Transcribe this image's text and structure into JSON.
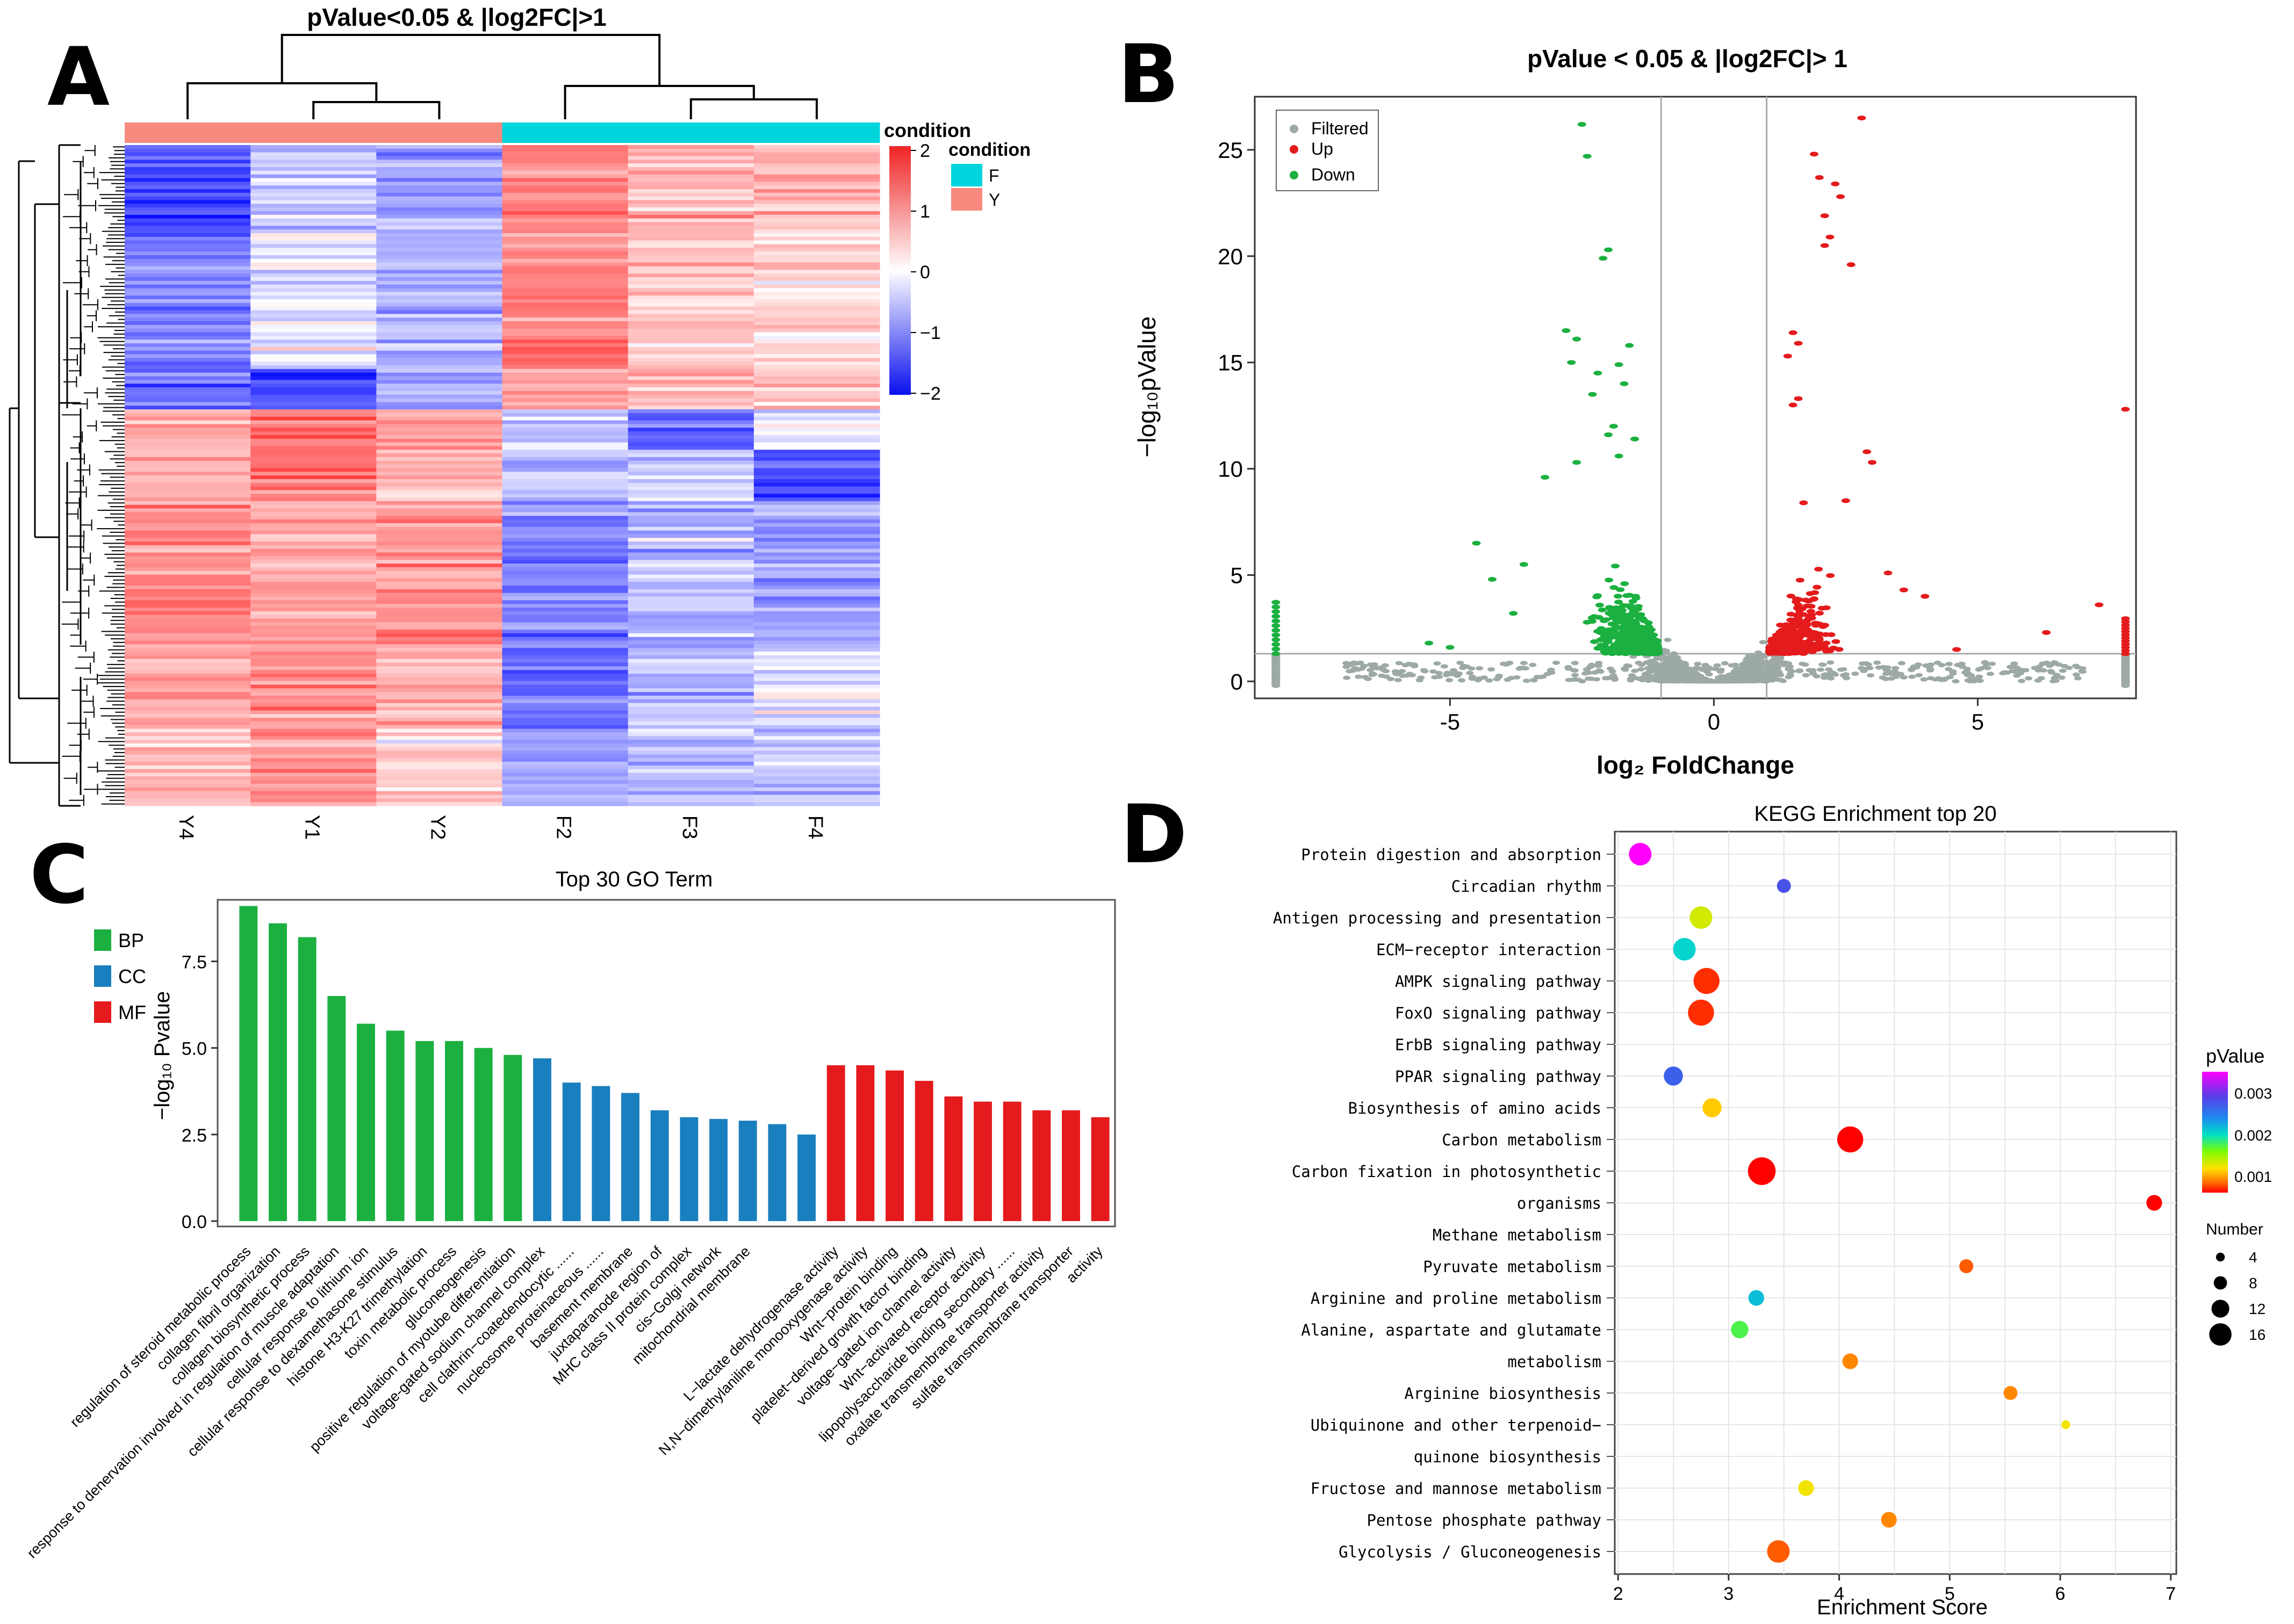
{
  "panels": {
    "a": "A",
    "b": "B",
    "c": "C",
    "d": "D"
  },
  "colors": {
    "red": "#E41A1C",
    "green": "#1BB040",
    "blue": "#1A7FBE",
    "grey": "#9DA9A6",
    "cyan": "#00D4DD",
    "salmon": "#F7897E"
  },
  "chart_data": [
    {
      "type": "heatmap",
      "panel": "A",
      "title": "pValue<0.05 & |log2FC|>1",
      "columns": [
        "Y4",
        "Y1",
        "Y2",
        "F2",
        "F3",
        "F4"
      ],
      "column_conditions": [
        "Y",
        "Y",
        "Y",
        "F",
        "F",
        "F"
      ],
      "legend_title": "condition",
      "condition_legend": {
        "title": "condition",
        "items": [
          {
            "label": "F",
            "color": "#00D4DD"
          },
          {
            "label": "Y",
            "color": "#F7897E"
          }
        ]
      },
      "scale": {
        "ticks": [
          "2",
          "1",
          "0",
          "−1",
          "−2"
        ],
        "min": -2,
        "max": 2
      },
      "cluster_blocks": [
        {
          "share": 0.14,
          "values": [
            -1.5,
            -0.4,
            -0.8,
            1.1,
            0.7,
            0.6
          ]
        },
        {
          "share": 0.2,
          "values": [
            -1.0,
            -0.2,
            -0.6,
            1.2,
            0.5,
            0.4
          ]
        },
        {
          "share": 0.06,
          "values": [
            -1.2,
            -1.4,
            -0.7,
            0.9,
            0.6,
            0.5
          ]
        },
        {
          "share": 0.06,
          "values": [
            0.8,
            1.2,
            0.9,
            -0.4,
            -1.2,
            -0.2
          ]
        },
        {
          "share": 0.08,
          "values": [
            0.7,
            1.1,
            0.6,
            -0.5,
            -0.3,
            -1.3
          ]
        },
        {
          "share": 0.22,
          "values": [
            1.0,
            0.8,
            0.9,
            -1.0,
            -0.6,
            -0.8
          ]
        },
        {
          "share": 0.12,
          "values": [
            0.8,
            1.0,
            0.6,
            -1.3,
            -0.5,
            -0.2
          ]
        },
        {
          "share": 0.12,
          "values": [
            0.6,
            0.9,
            0.3,
            -0.8,
            -0.6,
            -0.5
          ]
        }
      ]
    },
    {
      "type": "scatter",
      "panel": "B",
      "title": "pValue < 0.05 & |log2FC|> 1",
      "xlabel": "log₂ FoldChange",
      "ylabel": "−log₁₀pValue",
      "xlim": [
        -8.7,
        8
      ],
      "ylim": [
        -0.8,
        27.5
      ],
      "xticks": [
        -5,
        0,
        5
      ],
      "yticks": [
        0,
        5,
        10,
        15,
        20,
        25
      ],
      "thresholds": {
        "fc": [
          -1,
          1
        ],
        "p": 1.3
      },
      "legend": [
        {
          "label": "Filtered",
          "color": "#9DA9A6"
        },
        {
          "label": "Up",
          "color": "#E41A1C"
        },
        {
          "label": "Down",
          "color": "#1BB040"
        }
      ],
      "highlights": {
        "down": [
          [
            -2.5,
            26.2
          ],
          [
            -2.4,
            24.7
          ],
          [
            -2.0,
            20.3
          ],
          [
            -2.1,
            19.9
          ],
          [
            -2.8,
            16.5
          ],
          [
            -2.6,
            16.1
          ],
          [
            -1.6,
            15.8
          ],
          [
            -2.7,
            15.0
          ],
          [
            -1.8,
            14.9
          ],
          [
            -2.2,
            14.5
          ],
          [
            -1.7,
            14.0
          ],
          [
            -2.3,
            13.5
          ],
          [
            -1.9,
            12.0
          ],
          [
            -2.0,
            11.6
          ],
          [
            -1.5,
            11.4
          ],
          [
            -1.8,
            10.6
          ],
          [
            -2.6,
            10.3
          ],
          [
            -3.2,
            9.6
          ],
          [
            -4.5,
            6.5
          ],
          [
            -4.2,
            4.8
          ],
          [
            -3.6,
            5.5
          ],
          [
            -5.4,
            1.8
          ],
          [
            -5.0,
            1.6
          ],
          [
            -3.8,
            3.2
          ]
        ],
        "up": [
          [
            2.8,
            26.5
          ],
          [
            1.9,
            24.8
          ],
          [
            2.0,
            23.7
          ],
          [
            2.3,
            23.4
          ],
          [
            2.4,
            22.8
          ],
          [
            2.1,
            21.9
          ],
          [
            2.2,
            20.9
          ],
          [
            2.1,
            20.5
          ],
          [
            2.6,
            19.6
          ],
          [
            1.5,
            16.4
          ],
          [
            1.6,
            15.9
          ],
          [
            1.4,
            15.3
          ],
          [
            1.6,
            13.3
          ],
          [
            1.5,
            13.0
          ],
          [
            7.8,
            12.8
          ],
          [
            2.9,
            10.8
          ],
          [
            3.0,
            10.3
          ],
          [
            1.7,
            8.4
          ],
          [
            2.5,
            8.5
          ],
          [
            3.3,
            5.1
          ],
          [
            4.0,
            4.0
          ],
          [
            3.6,
            4.3
          ],
          [
            7.3,
            3.6
          ],
          [
            6.3,
            2.3
          ],
          [
            4.6,
            1.5
          ]
        ],
        "edge_down_x": -8.3,
        "edge_up_x": 7.8
      }
    },
    {
      "type": "bar",
      "panel": "C",
      "title": "Top 30 GO Term",
      "ylabel": "−log₁₀ Pvalue",
      "ylim": [
        0,
        9.2
      ],
      "yticks": [
        "0.0",
        "2.5",
        "5.0",
        "7.5"
      ],
      "legend": [
        {
          "label": "BP",
          "color": "#1BB040"
        },
        {
          "label": "CC",
          "color": "#1A7FBE"
        },
        {
          "label": "MF",
          "color": "#E41A1C"
        }
      ],
      "bars": [
        {
          "label": "regulation of steroid metabolic process",
          "value": 9.1,
          "group": "BP"
        },
        {
          "label": "collagen fibril organization",
          "value": 8.6,
          "group": "BP"
        },
        {
          "label": "collagen biosynthetic process",
          "value": 8.2,
          "group": "BP"
        },
        {
          "label": "response to denervation involved in regulation of muscle adaptation",
          "value": 6.5,
          "group": "BP"
        },
        {
          "label": "cellular response to lithium ion",
          "value": 5.7,
          "group": "BP"
        },
        {
          "label": "cellular response to dexamethasone stimulus",
          "value": 5.5,
          "group": "BP"
        },
        {
          "label": "histone H3-K27 trimethylation",
          "value": 5.2,
          "group": "BP"
        },
        {
          "label": "toxin metabolic process",
          "value": 5.2,
          "group": "BP"
        },
        {
          "label": "gluconeogenesis",
          "value": 5.0,
          "group": "BP"
        },
        {
          "label": "positive regulation of myotube differentiation",
          "value": 4.8,
          "group": "BP"
        },
        {
          "label": "voltage-gated sodium channel complex",
          "value": 4.7,
          "group": "CC"
        },
        {
          "label": "cell clathrin−coatedendocytic ......",
          "value": 4.0,
          "group": "CC"
        },
        {
          "label": "nucleosome proteinaceous ......",
          "value": 3.9,
          "group": "CC"
        },
        {
          "label": "basement membrane",
          "value": 3.7,
          "group": "CC"
        },
        {
          "label": "juxtaparanode region of",
          "value": 3.2,
          "group": "CC"
        },
        {
          "label": "MHC class II protein complex",
          "value": 3.0,
          "group": "CC"
        },
        {
          "label": "cis−Golgi network",
          "value": 2.95,
          "group": "CC"
        },
        {
          "label": "mitochondrial membrane",
          "value": 2.9,
          "group": "CC"
        },
        {
          "label": "",
          "value": 2.8,
          "group": "CC"
        },
        {
          "label": "",
          "value": 2.5,
          "group": "CC"
        },
        {
          "label": "L−lactate dehydrogenase activity",
          "value": 4.5,
          "group": "MF"
        },
        {
          "label": "N,N−dimethylaniline monooxygenase activity",
          "value": 4.5,
          "group": "MF"
        },
        {
          "label": "Wnt−protein binding",
          "value": 4.35,
          "group": "MF"
        },
        {
          "label": "platelet−derived growth factor binding",
          "value": 4.05,
          "group": "MF"
        },
        {
          "label": "voltage−gated ion channel activity",
          "value": 3.6,
          "group": "MF"
        },
        {
          "label": "Wnt−activated receptor activity",
          "value": 3.45,
          "group": "MF"
        },
        {
          "label": "lipopolysaccharide binding secondary ......",
          "value": 3.45,
          "group": "MF"
        },
        {
          "label": "oxalate transmembrane transporter activity",
          "value": 3.2,
          "group": "MF"
        },
        {
          "label": "sulfate transmembrane transporter",
          "value": 3.2,
          "group": "MF"
        },
        {
          "label": "activity",
          "value": 3.0,
          "group": "MF"
        }
      ]
    },
    {
      "type": "scatter",
      "panel": "D",
      "title": "KEGG Enrichment top 20",
      "xlabel": "Enrichment Score",
      "xlim": [
        1.97,
        7.05
      ],
      "xticks": [
        2,
        3,
        4,
        5,
        6,
        7
      ],
      "legend_pvalue": {
        "title": "pValue",
        "ticks": [
          "0.003",
          "0.002",
          "0.001"
        ],
        "min": 0.0005,
        "max": 0.0033
      },
      "legend_number": {
        "title": "Number",
        "items": [
          4,
          8,
          12,
          16
        ]
      },
      "rows": [
        "Protein digestion and absorption",
        "Circadian rhythm",
        "Antigen processing and presentation",
        "ECM−receptor interaction",
        "AMPK signaling pathway",
        "FoxO signaling pathway",
        "ErbB signaling pathway",
        "PPAR signaling pathway",
        "Biosynthesis of amino acids",
        "Carbon metabolism",
        "Carbon fixation in photosynthetic",
        "organisms",
        "Methane metabolism",
        "Pyruvate metabolism",
        "Arginine and proline metabolism",
        "Alanine, aspartate and glutamate",
        "metabolism",
        "Arginine biosynthesis",
        "Ubiquinone and other terpenoid−",
        "quinone biosynthesis",
        "Fructose and mannose metabolism",
        "Pentose phosphate pathway",
        "Glycolysis / Gluconeogenesis"
      ],
      "points": [
        {
          "row": 0,
          "x": 2.2,
          "count": 10,
          "p": 0.0033
        },
        {
          "row": 1,
          "x": 3.5,
          "count": 5,
          "p": 0.0026
        },
        {
          "row": 2,
          "x": 2.75,
          "count": 10,
          "p": 0.0012
        },
        {
          "row": 3,
          "x": 2.6,
          "count": 10,
          "p": 0.0019
        },
        {
          "row": 4,
          "x": 2.8,
          "count": 12,
          "p": 0.0006
        },
        {
          "row": 5,
          "x": 2.75,
          "count": 12,
          "p": 0.0006
        },
        {
          "row": 7,
          "x": 2.5,
          "count": 8,
          "p": 0.0025
        },
        {
          "row": 8,
          "x": 2.85,
          "count": 8,
          "p": 0.001
        },
        {
          "row": 9,
          "x": 4.1,
          "count": 12,
          "p": 0.0005
        },
        {
          "row": 10,
          "x": 3.3,
          "count": 13,
          "p": 0.0005
        },
        {
          "row": 11,
          "x": 6.85,
          "count": 6,
          "p": 0.0005
        },
        {
          "row": 13,
          "x": 5.15,
          "count": 5,
          "p": 0.0007
        },
        {
          "row": 14,
          "x": 3.25,
          "count": 6,
          "p": 0.002
        },
        {
          "row": 15,
          "x": 3.1,
          "count": 7,
          "p": 0.0016
        },
        {
          "row": 16,
          "x": 4.1,
          "count": 6,
          "p": 0.0008
        },
        {
          "row": 17,
          "x": 5.55,
          "count": 5,
          "p": 0.0008
        },
        {
          "row": 18,
          "x": 6.05,
          "count": 2,
          "p": 0.0011
        },
        {
          "row": 20,
          "x": 3.7,
          "count": 6,
          "p": 0.0011
        },
        {
          "row": 21,
          "x": 4.45,
          "count": 6,
          "p": 0.0008
        },
        {
          "row": 22,
          "x": 3.45,
          "count": 10,
          "p": 0.0007
        }
      ]
    }
  ]
}
